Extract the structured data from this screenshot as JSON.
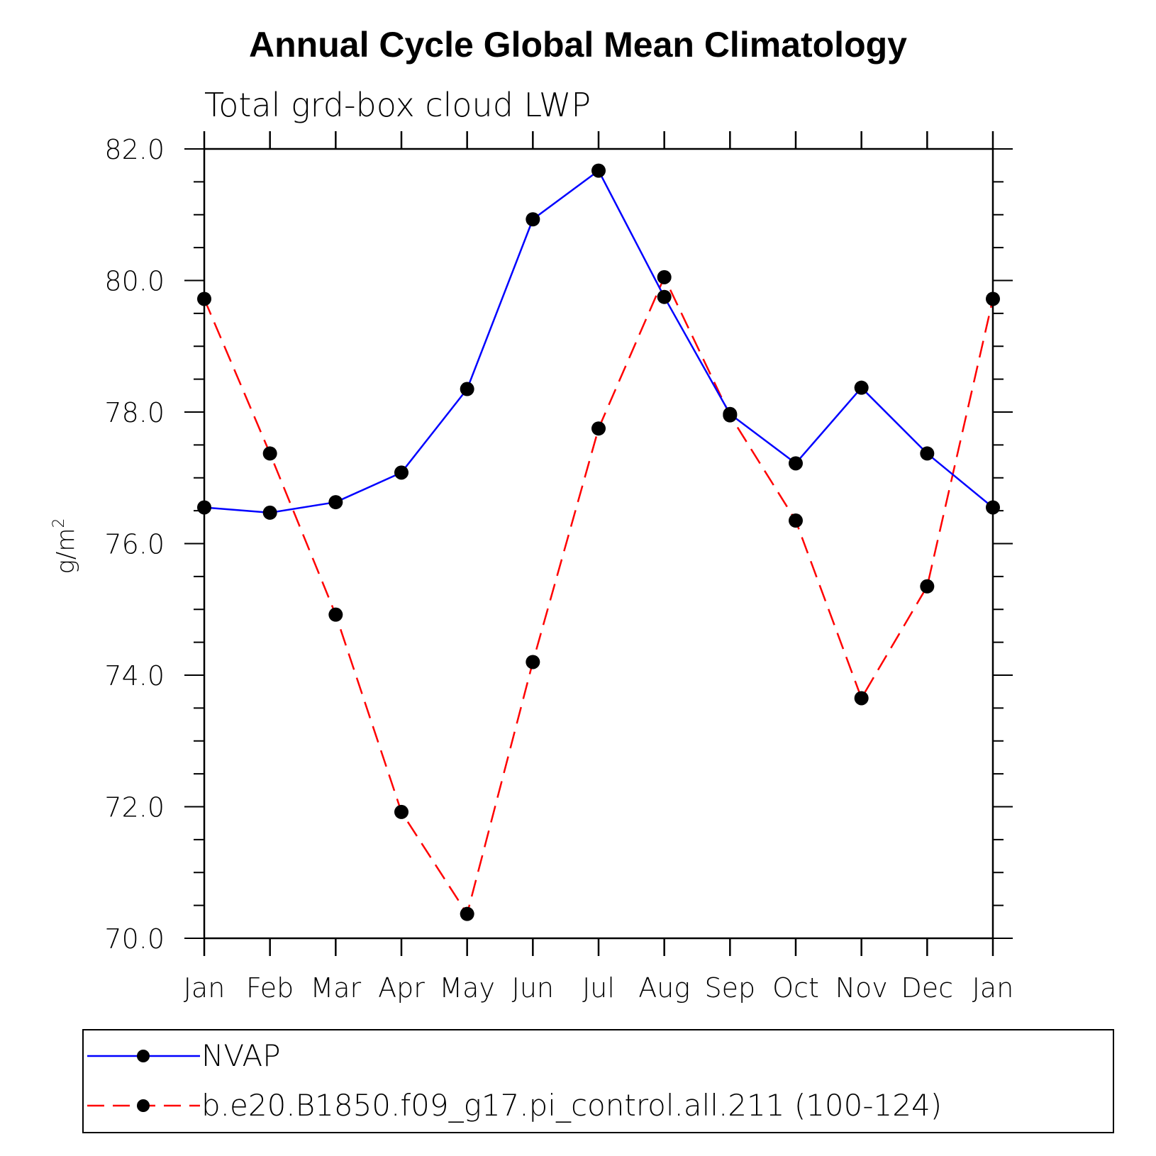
{
  "chart_data": {
    "type": "line",
    "title": "Annual Cycle Global Mean Climatology",
    "subtitle": "Total grd-box cloud LWP",
    "xlabel": "",
    "ylabel": "g/m",
    "ylabel_superscript": "2",
    "categories": [
      "Jan",
      "Feb",
      "Mar",
      "Apr",
      "May",
      "Jun",
      "Jul",
      "Aug",
      "Sep",
      "Oct",
      "Nov",
      "Dec",
      "Jan"
    ],
    "yticks": [
      "70.0",
      "72.0",
      "74.0",
      "76.0",
      "78.0",
      "80.0",
      "82.0"
    ],
    "ylim": [
      70,
      82
    ],
    "grid": false,
    "legend_position": "bottom",
    "series": [
      {
        "name": "NVAP",
        "color": "#0000ff",
        "dash": "solid",
        "values": [
          76.55,
          76.47,
          76.63,
          77.08,
          78.35,
          80.93,
          81.67,
          79.75,
          77.97,
          77.22,
          78.37,
          77.37,
          76.55
        ]
      },
      {
        "name": "b.e20.B1850.f09_g17.pi_control.all.211 (100-124)",
        "color": "#ff0000",
        "dash": "dashed",
        "values": [
          79.72,
          77.37,
          74.92,
          71.92,
          70.37,
          74.2,
          77.75,
          80.05,
          77.95,
          76.35,
          73.65,
          75.35,
          79.72
        ]
      }
    ]
  }
}
